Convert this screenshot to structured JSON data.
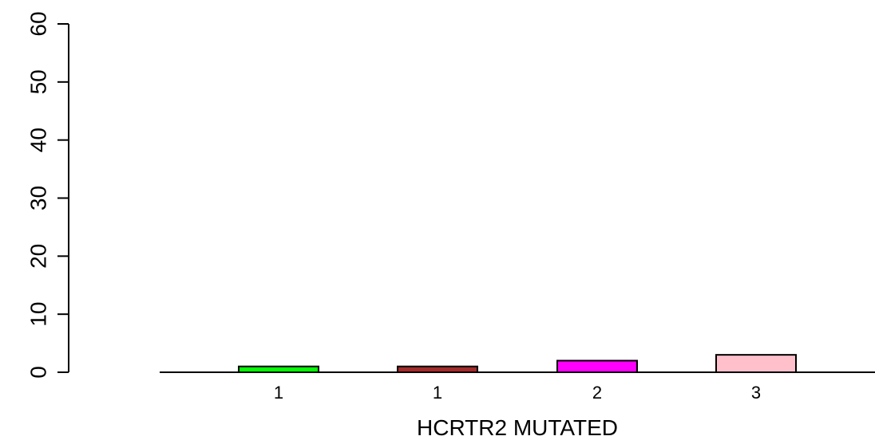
{
  "chart_data": {
    "type": "bar",
    "title": "",
    "xlabel": "HCRTR2 MUTATED",
    "ylabel": "",
    "categories": [
      "1",
      "1",
      "2",
      "3"
    ],
    "values": [
      1,
      1,
      2,
      3
    ],
    "colors": [
      "#00ff00",
      "#a52a2a",
      "#ff00ff",
      "#ffc0cb"
    ],
    "ylim": [
      0,
      60
    ],
    "yticks": [
      0,
      10,
      20,
      30,
      40,
      50,
      60
    ],
    "grid": false,
    "legend": "none"
  }
}
